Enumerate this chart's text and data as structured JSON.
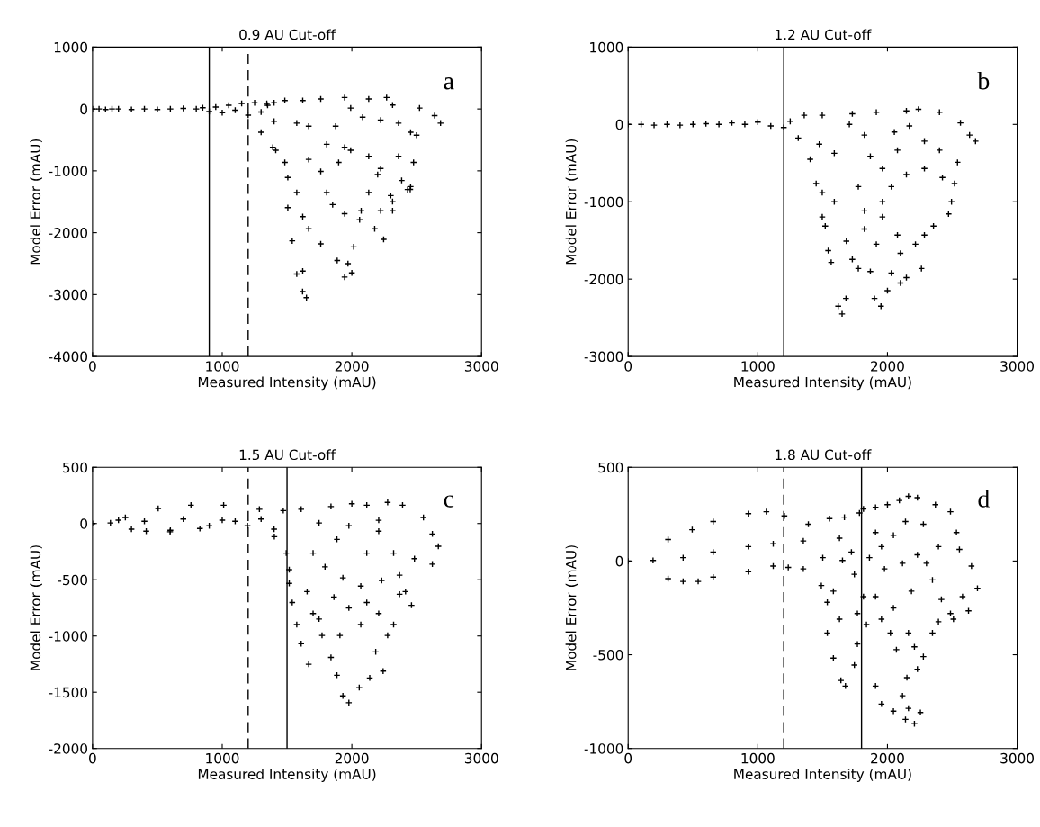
{
  "chart_data": [
    {
      "type": "scatter",
      "title": "0.9 AU Cut-off",
      "xlabel": "Measured Intensity (mAU)",
      "ylabel": "Model Error (mAU)",
      "annotations": [
        "a"
      ],
      "marker": "cross",
      "xlim": [
        0,
        3000
      ],
      "xticks": [
        0,
        1000,
        2000,
        3000
      ],
      "ylim": [
        -4000,
        1000
      ],
      "yticks": [
        -4000,
        -3000,
        -2000,
        -1000,
        0,
        1000
      ],
      "ref_lines": [
        {
          "axis": "x",
          "value": 900,
          "line_style": "solid",
          "color": "#000000"
        },
        {
          "axis": "x",
          "value": 1200,
          "line_style": "dashed",
          "color": "#000000"
        }
      ],
      "series": [
        {
          "color": "#000000",
          "x": [
            0,
            50,
            100,
            150,
            200,
            300,
            400,
            500,
            600,
            700,
            800,
            850,
            900,
            950,
            1000,
            1050,
            1100,
            1150,
            1200,
            1250,
            1300,
            1350,
            1400,
            1400,
            1390,
            1483,
            1506,
            1575,
            1506,
            1621,
            1540,
            1667,
            1760,
            1887,
            1944,
            2014,
            2072,
            2130,
            2199,
            2245,
            2314,
            2453,
            2476,
            2499,
            2684,
            2638,
            2268,
            2130,
            1944,
            1760,
            1621,
            1483,
            1344,
            1300,
            2360,
            2453,
            2083,
            1875,
            1667,
            1575,
            1944,
            1806,
            1667,
            1760,
            1898,
            1991,
            2130,
            2222,
            2360,
            2384,
            2430,
            1806,
            1852,
            1944,
            2060,
            2176,
            2222,
            2314,
            2222,
            1991,
            2314,
            2522,
            1413,
            1621,
            1575,
            1650,
            1620,
            2000,
            1970,
            2300,
            2450
          ],
          "values": [
            0,
            0,
            -10,
            0,
            0,
            -10,
            0,
            -10,
            0,
            10,
            0,
            20,
            -40,
            30,
            -60,
            60,
            -20,
            90,
            -100,
            100,
            -50,
            60,
            -200,
            100,
            -620,
            -863,
            -1107,
            -1351,
            -1595,
            -1741,
            -2132,
            -1937,
            -2180,
            -2449,
            -2717,
            -2229,
            -1644,
            -1351,
            -1059,
            -2107,
            -1498,
            -1254,
            -863,
            -424,
            -229,
            -107,
            185,
            161,
            185,
            161,
            137,
            137,
            88,
            -376,
            -229,
            -376,
            -132,
            -278,
            -278,
            -229,
            -620,
            -571,
            -815,
            -1010,
            -863,
            -668,
            -766,
            -961,
            -766,
            -1156,
            -1302,
            -1351,
            -1546,
            -1693,
            -1790,
            -1937,
            -1644,
            -1644,
            -180,
            15,
            63,
            15,
            -668,
            -2620,
            -2668,
            -3050,
            -2950,
            -2650,
            -2500,
            -1400,
            -1300
          ]
        }
      ]
    },
    {
      "type": "scatter",
      "title": "1.2 AU Cut-off",
      "xlabel": "Measured Intensity (mAU)",
      "ylabel": "Model Error (mAU)",
      "annotations": [
        "b"
      ],
      "marker": "cross",
      "xlim": [
        0,
        3000
      ],
      "xticks": [
        0,
        1000,
        2000,
        3000
      ],
      "ylim": [
        -3000,
        1000
      ],
      "yticks": [
        -3000,
        -2000,
        -1000,
        0,
        1000
      ],
      "ref_lines": [
        {
          "axis": "x",
          "value": 1200,
          "line_style": "solid",
          "color": "#000000"
        }
      ],
      "series": [
        {
          "color": "#000000",
          "x": [
            0,
            100,
            200,
            300,
            400,
            500,
            600,
            700,
            800,
            900,
            1000,
            1100,
            1200,
            1250,
            1358,
            1497,
            1729,
            1914,
            2146,
            2239,
            2401,
            2563,
            2679,
            2633,
            2540,
            2401,
            2285,
            2053,
            1822,
            1590,
            1474,
            1312,
            1404,
            1450,
            1497,
            1590,
            1497,
            1520,
            1683,
            1543,
            1566,
            1729,
            1775,
            1868,
            2030,
            2146,
            2262,
            2216,
            2285,
            2355,
            2471,
            2494,
            2517,
            2424,
            2285,
            2146,
            2030,
            1961,
            1822,
            1961,
            2077,
            2100,
            1914,
            1822,
            1775,
            1868,
            1961,
            2077,
            2169,
            1706,
            1650,
            1620,
            1680,
            1950,
            1900,
            2000,
            2100
          ],
          "values": [
            0,
            0,
            -10,
            0,
            -10,
            0,
            10,
            0,
            20,
            0,
            30,
            -20,
            -40,
            40,
            118,
            118,
            137,
            157,
            176,
            196,
            157,
            20,
            -216,
            -137,
            -490,
            -333,
            -216,
            -98,
            -137,
            -373,
            -255,
            -176,
            -451,
            -765,
            -882,
            -1000,
            -1196,
            -1314,
            -1510,
            -1631,
            -1784,
            -1745,
            -1863,
            -1902,
            -1922,
            -1980,
            -1863,
            -1549,
            -1431,
            -1314,
            -1157,
            -1000,
            -765,
            -686,
            -569,
            -647,
            -804,
            -1000,
            -1118,
            -1196,
            -1431,
            -1667,
            -1549,
            -1353,
            -804,
            -412,
            -569,
            -333,
            -20,
            0,
            -2450,
            -2350,
            -2250,
            -2350,
            -2250,
            -2150,
            -2050
          ]
        }
      ]
    },
    {
      "type": "scatter",
      "title": "1.5 AU Cut-off",
      "xlabel": "Measured Intensity (mAU)",
      "ylabel": "Model Error (mAU)",
      "annotations": [
        "c"
      ],
      "marker": "cross",
      "xlim": [
        0,
        3000
      ],
      "xticks": [
        0,
        1000,
        2000,
        3000
      ],
      "ylim": [
        -2000,
        500
      ],
      "yticks": [
        -2000,
        -1500,
        -1000,
        -500,
        0,
        500
      ],
      "ref_lines": [
        {
          "axis": "x",
          "value": 1200,
          "line_style": "dashed",
          "color": "#000000"
        },
        {
          "axis": "x",
          "value": 1500,
          "line_style": "solid",
          "color": "#000000"
        }
      ],
      "series": [
        {
          "color": "#000000",
          "x": [
            0,
            138,
            253,
            414,
            506,
            598,
            759,
            828,
            1011,
            1195,
            1287,
            200,
            300,
            400,
            600,
            700,
            900,
            1000,
            1100,
            1300,
            1400,
            1402,
            1494,
            1517,
            1540,
            1575,
            1609,
            1667,
            1747,
            1839,
            1885,
            1931,
            1977,
            2057,
            2138,
            2241,
            2184,
            2276,
            2322,
            2207,
            2115,
            2069,
            2230,
            2368,
            2414,
            2460,
            2368,
            2621,
            2667,
            2621,
            2552,
            2391,
            2276,
            2115,
            2000,
            1839,
            1609,
            1471,
            1747,
            1977,
            2207,
            2322,
            2483,
            1885,
            1701,
            1793,
            1931,
            1655,
            1517,
            1862,
            1977,
            2069,
            1908,
            1770,
            1701,
            2115,
            2207
          ],
          "values": [
            0,
            5,
            54,
            -68,
            134,
            -73,
            163,
            -44,
            163,
            -20,
            127,
            30,
            -50,
            20,
            -60,
            40,
            -20,
            30,
            20,
            40,
            -50,
            -117,
            -263,
            -410,
            -702,
            -898,
            -1068,
            -1251,
            -849,
            -1190,
            -1349,
            -1532,
            -1593,
            -1459,
            -1373,
            -1312,
            -1141,
            -995,
            -898,
            -800,
            -702,
            -556,
            -507,
            -459,
            -605,
            -727,
            -629,
            -361,
            -202,
            -93,
            54,
            163,
            188,
            163,
            176,
            151,
            127,
            115,
            5,
            -20,
            -68,
            -263,
            -312,
            -141,
            -263,
            -385,
            -483,
            -605,
            -532,
            -654,
            -751,
            -898,
            -995,
            -995,
            -800,
            -263,
            29
          ]
        }
      ]
    },
    {
      "type": "scatter",
      "title": "1.8 AU Cut-off",
      "xlabel": "Measured Intensity (mAU)",
      "ylabel": "Model Error (mAU)",
      "annotations": [
        "d"
      ],
      "marker": "cross",
      "xlim": [
        0,
        3000
      ],
      "xticks": [
        0,
        1000,
        2000,
        3000
      ],
      "ylim": [
        -1000,
        500
      ],
      "yticks": [
        -1000,
        -500,
        0,
        500
      ],
      "ref_lines": [
        {
          "axis": "x",
          "value": 1200,
          "line_style": "dashed",
          "color": "#000000"
        },
        {
          "axis": "x",
          "value": 1800,
          "line_style": "solid",
          "color": "#000000"
        }
      ],
      "series": [
        {
          "color": "#000000",
          "x": [
            0,
            308,
            494,
            656,
            927,
            1066,
            1205,
            1390,
            1553,
            1668,
            1784,
            308,
            424,
            540,
            656,
            927,
            1119,
            1235,
            1351,
            192,
            424,
            656,
            927,
            1119,
            1351,
            1501,
            1490,
            1536,
            1583,
            1630,
            1536,
            1583,
            1641,
            1676,
            1745,
            1768,
            1768,
            1745,
            1815,
            1838,
            1908,
            1954,
            2046,
            2139,
            2208,
            2254,
            2162,
            2116,
            2150,
            2231,
            2277,
            2208,
            2069,
            2023,
            2162,
            2347,
            2393,
            2509,
            2625,
            2579,
            2694,
            2648,
            2555,
            2532,
            2486,
            2370,
            2231,
            2162,
            2092,
            2000,
            1908,
            1815,
            1908,
            2046,
            2139,
            2277,
            2393,
            2301,
            2347,
            2416,
            2486,
            2185,
            2046,
            1954,
            1908,
            1977,
            2116,
            2231,
            1861,
            1954,
            1722,
            1630,
            1653
          ],
          "values": [
            0,
            115,
            167,
            211,
            253,
            263,
            241,
            196,
            226,
            234,
            256,
            -94,
            -109,
            -109,
            -86,
            -57,
            -27,
            -34,
            -42,
            3,
            18,
            48,
            77,
            92,
            107,
            18,
            -131,
            -220,
            -161,
            -310,
            -384,
            -518,
            -637,
            -667,
            -555,
            -443,
            -280,
            -71,
            -190,
            -339,
            -667,
            -763,
            -801,
            -845,
            -868,
            -808,
            -786,
            -719,
            -622,
            -577,
            -510,
            -458,
            -473,
            -384,
            -384,
            -384,
            -324,
            -310,
            -266,
            -190,
            -146,
            -27,
            62,
            152,
            263,
            301,
            338,
            345,
            323,
            301,
            286,
            278,
            152,
            137,
            211,
            196,
            77,
            -12,
            -101,
            -205,
            -280,
            -161,
            -250,
            -310,
            -190,
            -42,
            -12,
            33,
            18,
            77,
            48,
            122,
            3
          ]
        }
      ]
    }
  ]
}
